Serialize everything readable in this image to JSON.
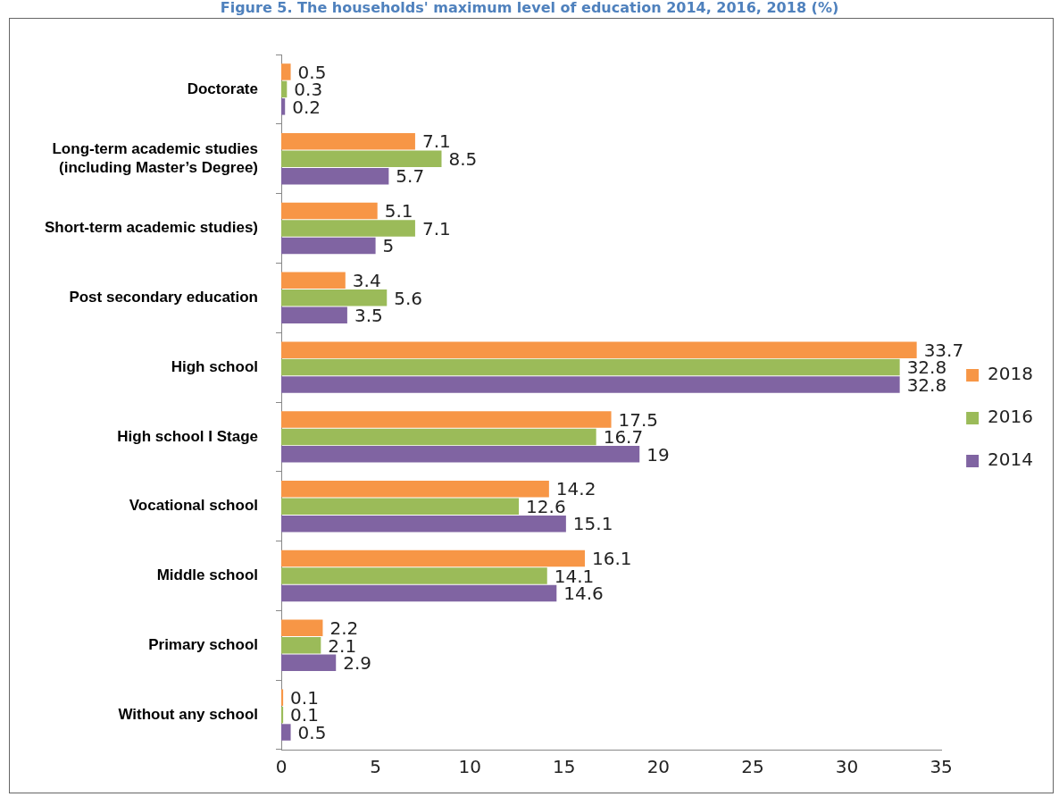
{
  "chart_data": {
    "type": "bar",
    "orientation": "horizontal",
    "title": "Figure 5. The households' maximum level of education 2014, 2016, 2018 (%)",
    "categories": [
      "Doctorate",
      "Long-term academic studies (including Master’s Degree)",
      "Short-term academic studies)",
      "Post secondary education",
      "High school",
      "High school I Stage",
      "Vocational school",
      "Middle school",
      "Primary school",
      "Without any school"
    ],
    "series": [
      {
        "name": "2018",
        "color": "#f79646",
        "values": [
          0.5,
          7.1,
          5.1,
          3.4,
          33.7,
          17.5,
          14.2,
          16.1,
          2.2,
          0.1
        ]
      },
      {
        "name": "2016",
        "color": "#9bbb59",
        "values": [
          0.3,
          8.5,
          7.1,
          5.6,
          32.8,
          16.7,
          12.6,
          14.1,
          2.1,
          0.1
        ]
      },
      {
        "name": "2014",
        "color": "#8064a2",
        "values": [
          0.2,
          5.7,
          5,
          3.5,
          32.8,
          19,
          15.1,
          14.6,
          2.9,
          0.5
        ]
      }
    ],
    "xlim": [
      0,
      35
    ],
    "xticks": [
      0,
      5,
      10,
      15,
      20,
      25,
      30,
      35
    ],
    "grid": false,
    "legend": "right",
    "data_labels": true
  }
}
